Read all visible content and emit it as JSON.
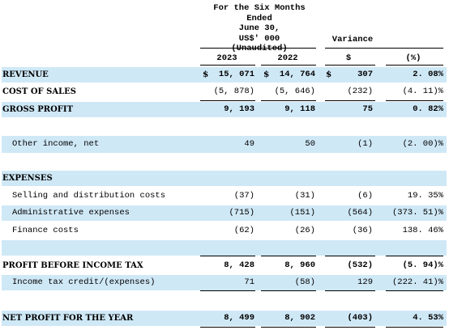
{
  "header": {
    "period_line1": "For the Six  Months Ended",
    "period_line2": "June  30,",
    "currency": "US$' 000",
    "audit_status": "(Unaudited)",
    "variance_label": "Variance",
    "col_2023": "2023",
    "col_2022": "2022",
    "col_var_amt": "$",
    "col_var_pct": "(%)"
  },
  "rows": [
    {
      "label": "REVENUE",
      "y2023": "15, 071",
      "y2022": "14, 764",
      "var": "307",
      "pct": "2. 08%",
      "dollar": "$"
    },
    {
      "label": "COST OF SALES",
      "y2023": "(5, 878)",
      "y2022": "(5, 646)",
      "var": "(232)",
      "pct": "(4. 11)%"
    },
    {
      "label": "GROSS PROFIT",
      "y2023": "9, 193",
      "y2022": "9, 118",
      "var": "75",
      "pct": "0. 82%"
    },
    {
      "label": "Other income,  net",
      "y2023": "49",
      "y2022": "50",
      "var": "(1)",
      "pct": "(2. 00)%"
    },
    {
      "label": "EXPENSES"
    },
    {
      "label": "Selling and distribution costs",
      "y2023": "(37)",
      "y2022": "(31)",
      "var": "(6)",
      "pct": "19. 35%"
    },
    {
      "label": "Administrative expenses",
      "y2023": "(715)",
      "y2022": "(151)",
      "var": "(564)",
      "pct": "(373. 51)%"
    },
    {
      "label": "Finance costs",
      "y2023": "(62)",
      "y2022": "(26)",
      "var": "(36)",
      "pct": "138. 46%"
    },
    {
      "label": "PROFIT BEFORE INCOME TAX",
      "y2023": "8, 428",
      "y2022": "8, 960",
      "var": "(532)",
      "pct": "(5. 94)%"
    },
    {
      "label": "Income tax credit/(expenses)",
      "y2023": "71",
      "y2022": "(58)",
      "var": "129",
      "pct": "(222. 41)%"
    },
    {
      "label": "NET PROFIT FOR THE YEAR",
      "y2023": "8, 499",
      "y2022": "8, 902",
      "var": "(403)",
      "pct": "4. 53%"
    }
  ],
  "colors": {
    "shade": "#cfe8f6"
  }
}
